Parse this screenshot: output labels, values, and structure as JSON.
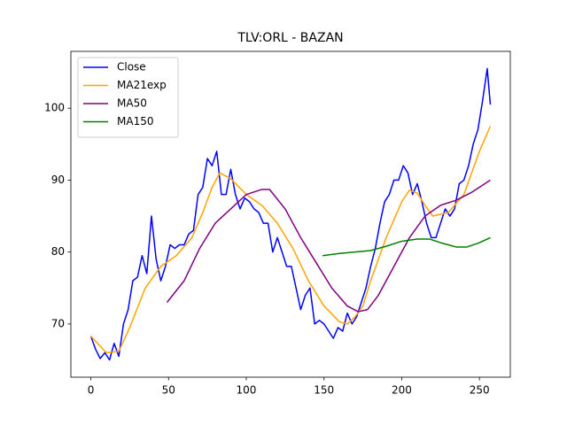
{
  "chart_data": {
    "type": "line",
    "title": "TLV:ORL - BAZAN",
    "xlim": [
      -12.85,
      269.85
    ],
    "xticks": [
      0,
      50,
      100,
      150,
      200,
      250
    ],
    "ylim": [
      62.6,
      107.9
    ],
    "yticks": [
      70,
      80,
      90,
      100
    ],
    "legend": "upper left",
    "series": [
      {
        "name": "Close",
        "color": "#0000ff",
        "x": [
          0,
          3,
          6,
          9,
          12,
          15,
          18,
          21,
          24,
          27,
          30,
          33,
          36,
          39,
          42,
          45,
          48,
          51,
          54,
          57,
          60,
          63,
          66,
          69,
          72,
          75,
          78,
          81,
          84,
          87,
          90,
          93,
          96,
          99,
          102,
          105,
          108,
          111,
          114,
          117,
          120,
          123,
          126,
          129,
          132,
          135,
          138,
          141,
          144,
          147,
          150,
          153,
          156,
          159,
          162,
          165,
          168,
          171,
          174,
          177,
          180,
          183,
          186,
          189,
          192,
          195,
          198,
          201,
          204,
          207,
          210,
          213,
          216,
          219,
          222,
          225,
          228,
          231,
          234,
          237,
          240,
          243,
          246,
          249,
          252,
          255,
          257
        ],
        "values": [
          68.3,
          66.5,
          65.2,
          66.0,
          65.0,
          67.3,
          65.5,
          70,
          72,
          76,
          76.5,
          79.5,
          77,
          85,
          79,
          76,
          78,
          81,
          80.5,
          81,
          81,
          82.5,
          83,
          88,
          89,
          93,
          92,
          94,
          88,
          88,
          91.5,
          88,
          86,
          87.5,
          87,
          86,
          85.5,
          84,
          84,
          80,
          82,
          80,
          78,
          78,
          75,
          72,
          74,
          75,
          70,
          70.5,
          70,
          69,
          68,
          69.5,
          69,
          71.5,
          70,
          71,
          73,
          75,
          78,
          80.5,
          84,
          87,
          88,
          90,
          90,
          92,
          91,
          88,
          89.5,
          87,
          84,
          82,
          82,
          84,
          86,
          85,
          86,
          89.5,
          90,
          92,
          95,
          97,
          101,
          105.5,
          100.5
        ]
      },
      {
        "name": "MA21exp",
        "color": "#ffa500",
        "x": [
          0,
          10,
          18,
          25,
          35,
          45,
          55,
          65,
          72,
          78,
          83,
          90,
          100,
          110,
          120,
          130,
          140,
          150,
          160,
          165,
          170,
          175,
          180,
          190,
          200,
          205,
          210,
          215,
          220,
          230,
          240,
          250,
          257
        ],
        "values": [
          68.3,
          66,
          66.2,
          69.5,
          75,
          78,
          79.5,
          82,
          85.5,
          89,
          91,
          90.2,
          88,
          86.5,
          84,
          80.5,
          76,
          72.5,
          70.3,
          70,
          71,
          72.5,
          76,
          82,
          87,
          88.6,
          88.2,
          86.5,
          85,
          85.5,
          88,
          94,
          97.5
        ]
      },
      {
        "name": "MA50",
        "color": "#800080",
        "x": [
          49,
          60,
          70,
          80,
          90,
          100,
          110,
          115,
          125,
          135,
          145,
          155,
          165,
          172,
          178,
          185,
          195,
          205,
          215,
          225,
          235,
          245,
          257
        ],
        "values": [
          73,
          76,
          80.5,
          84,
          86,
          88,
          88.7,
          88.7,
          86,
          82,
          78.5,
          75,
          72.5,
          71.7,
          72,
          74,
          78,
          82,
          85,
          86.5,
          87.2,
          88.3,
          90
        ]
      },
      {
        "name": "MA150",
        "color": "#008000",
        "x": [
          149,
          160,
          170,
          180,
          190,
          200,
          210,
          218,
          225,
          235,
          242,
          250,
          257
        ],
        "values": [
          79.5,
          79.8,
          80,
          80.2,
          80.8,
          81.5,
          81.8,
          81.8,
          81.3,
          80.7,
          80.7,
          81.3,
          82
        ]
      }
    ]
  }
}
